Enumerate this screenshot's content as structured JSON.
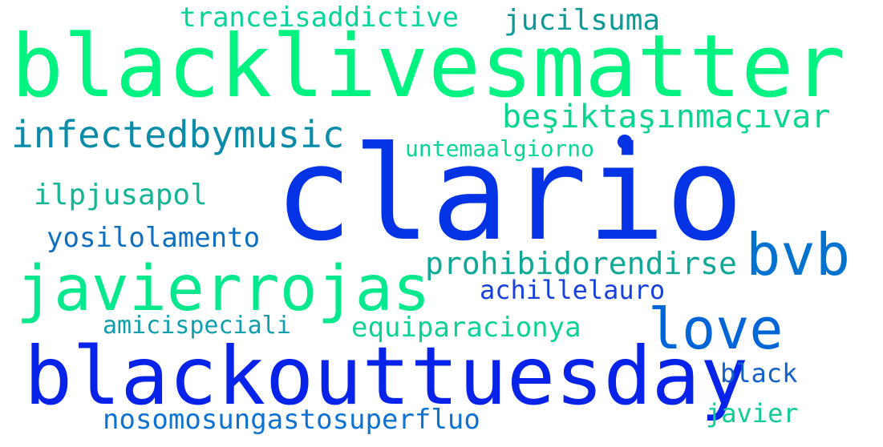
{
  "word_cloud": {
    "words": [
      {
        "text": "blacklivesmatter",
        "color": "#00f281"
      },
      {
        "text": "clario",
        "color": "#0433e6"
      },
      {
        "text": "blackouttuesday",
        "color": "#0722e9"
      },
      {
        "text": "javierrojas",
        "color": "#05e88d"
      },
      {
        "text": "love",
        "color": "#0066d8"
      },
      {
        "text": "bvb",
        "color": "#0173cf"
      },
      {
        "text": "infectedbymusic",
        "color": "#0a8ca8"
      },
      {
        "text": "beşiktaşınmaçıvar",
        "color": "#0ad58f"
      },
      {
        "text": "prohibidorendirse",
        "color": "#0fa896"
      },
      {
        "text": "nosomosungastosuperfluo",
        "color": "#0d72d1"
      },
      {
        "text": "tranceisaddictive",
        "color": "#06d39a"
      },
      {
        "text": "jucilsuma",
        "color": "#0b9a98"
      },
      {
        "text": "untemaalgiorno",
        "color": "#08d698"
      },
      {
        "text": "ilpjusapol",
        "color": "#13b597"
      },
      {
        "text": "yosilolamento",
        "color": "#0c6fc0"
      },
      {
        "text": "achillelauro",
        "color": "#1840dd"
      },
      {
        "text": "amicispeciali",
        "color": "#0f9fac"
      },
      {
        "text": "equiparacionya",
        "color": "#0ad297"
      },
      {
        "text": "black",
        "color": "#1161c8"
      },
      {
        "text": "javier",
        "color": "#10cb98"
      }
    ]
  }
}
